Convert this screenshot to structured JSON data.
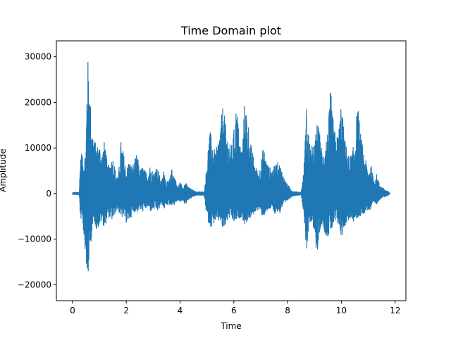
{
  "chart_data": {
    "type": "line",
    "title": "Time Domain plot",
    "xlabel": "Time",
    "ylabel": "Amplitude",
    "xlim": [
      -0.6,
      12.4
    ],
    "ylim": [
      -23500,
      33500
    ],
    "grid": false,
    "legend": "none",
    "color": "#1f77b4",
    "xticks": [
      0,
      2,
      4,
      6,
      8,
      10,
      12
    ],
    "xtick_labels": [
      "0",
      "2",
      "4",
      "6",
      "8",
      "10",
      "12"
    ],
    "yticks": [
      -20000,
      -10000,
      0,
      10000,
      20000,
      30000
    ],
    "ytick_labels": [
      "−20000",
      "−10000",
      "0",
      "10000",
      "20000",
      "30000"
    ],
    "series": [
      {
        "envelope_x": [
          0.0,
          0.25,
          0.3,
          0.35,
          0.4,
          0.5,
          0.55,
          0.58,
          0.62,
          0.7,
          0.8,
          0.9,
          1.0,
          1.1,
          1.2,
          1.3,
          1.4,
          1.5,
          1.6,
          1.7,
          1.8,
          1.9,
          2.0,
          2.1,
          2.2,
          2.3,
          2.4,
          2.5,
          2.6,
          2.7,
          2.8,
          2.9,
          3.0,
          3.1,
          3.2,
          3.3,
          3.4,
          3.5,
          3.6,
          3.7,
          3.8,
          3.9,
          4.0,
          4.1,
          4.2,
          4.3,
          4.4,
          4.6,
          4.9,
          5.0,
          5.1,
          5.2,
          5.3,
          5.4,
          5.5,
          5.6,
          5.7,
          5.8,
          5.9,
          6.0,
          6.1,
          6.2,
          6.3,
          6.4,
          6.5,
          6.6,
          6.7,
          6.8,
          6.9,
          7.0,
          7.1,
          7.2,
          7.3,
          7.4,
          7.5,
          7.6,
          7.7,
          7.8,
          7.9,
          8.0,
          8.2,
          8.5,
          8.6,
          8.7,
          8.8,
          8.9,
          9.0,
          9.1,
          9.2,
          9.3,
          9.4,
          9.5,
          9.6,
          9.7,
          9.8,
          9.9,
          10.0,
          10.1,
          10.2,
          10.3,
          10.4,
          10.5,
          10.6,
          10.7,
          10.8,
          10.9,
          11.0,
          11.1,
          11.2,
          11.3,
          11.4,
          11.5,
          11.6,
          11.8
        ],
        "envelope_max": [
          200,
          300,
          9500,
          9000,
          7000,
          10000,
          31000,
          29000,
          26000,
          16000,
          12000,
          10500,
          11000,
          9000,
          12000,
          6000,
          7000,
          8000,
          5000,
          3500,
          11500,
          9000,
          5000,
          7500,
          6000,
          7000,
          9000,
          5000,
          6000,
          5000,
          4500,
          6500,
          4500,
          6000,
          5000,
          2500,
          5500,
          2500,
          3000,
          5500,
          4000,
          1500,
          2500,
          1500,
          2500,
          1500,
          1000,
          400,
          400,
          7000,
          14000,
          12000,
          9000,
          11000,
          15000,
          20000,
          15000,
          12000,
          10000,
          14000,
          20000,
          13000,
          9000,
          20000,
          18000,
          12000,
          9000,
          6000,
          5000,
          6500,
          10500,
          7500,
          6000,
          5500,
          6000,
          7000,
          6500,
          5000,
          3000,
          2000,
          500,
          300,
          5000,
          19000,
          12000,
          10000,
          11000,
          16000,
          13000,
          8500,
          12000,
          14000,
          23000,
          16000,
          12000,
          14000,
          21000,
          13000,
          10000,
          8000,
          9000,
          12000,
          20000,
          14000,
          10000,
          7500,
          5000,
          6500,
          3000,
          4500,
          2500,
          1500,
          1000,
          200
        ],
        "envelope_min": [
          -200,
          -300,
          -6500,
          -4000,
          -8000,
          -14000,
          -21000,
          -20000,
          -14000,
          -10000,
          -6000,
          -8000,
          -7000,
          -6000,
          -8000,
          -5000,
          -5500,
          -6000,
          -4000,
          -3500,
          -5500,
          -5000,
          -6500,
          -6000,
          -5000,
          -4000,
          -4000,
          -3500,
          -4000,
          -3500,
          -3000,
          -4000,
          -3500,
          -3500,
          -4000,
          -2000,
          -3500,
          -2500,
          -2500,
          -2500,
          -2500,
          -1500,
          -2000,
          -1500,
          -2500,
          -1500,
          -1000,
          -400,
          -400,
          -5500,
          -7000,
          -7500,
          -6000,
          -6500,
          -6000,
          -8500,
          -7000,
          -5500,
          -5500,
          -6500,
          -6000,
          -5500,
          -5000,
          -7000,
          -6000,
          -5500,
          -5000,
          -4000,
          -3500,
          -4500,
          -5000,
          -4500,
          -3500,
          -3500,
          -4500,
          -4000,
          -4500,
          -3000,
          -2500,
          -1500,
          -500,
          -300,
          -4000,
          -13000,
          -7000,
          -7000,
          -8000,
          -15000,
          -8000,
          -6500,
          -9000,
          -9500,
          -8500,
          -7500,
          -6500,
          -7000,
          -10000,
          -7500,
          -6500,
          -5500,
          -6500,
          -6000,
          -5500,
          -5000,
          -4500,
          -4000,
          -3500,
          -4000,
          -2000,
          -2500,
          -1500,
          -1000,
          -800,
          -200
        ]
      }
    ]
  }
}
